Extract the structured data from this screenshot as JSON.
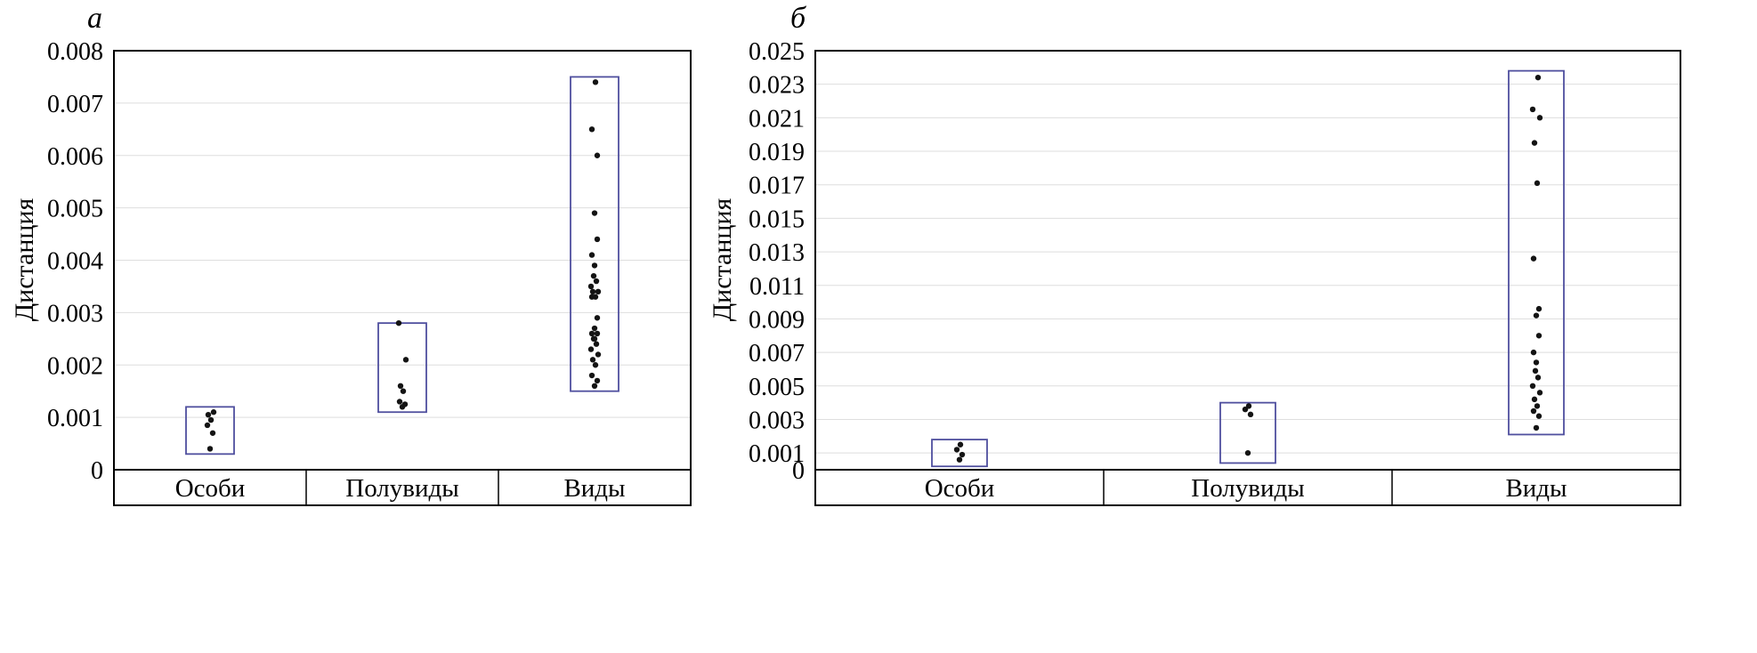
{
  "style": {
    "background": "#ffffff",
    "frame_color": "#000000",
    "grid_color": "#dedede",
    "box_color": "#4f4f9e",
    "dot_color": "#141414",
    "text_color": "#000000"
  },
  "chart_data": [
    {
      "type": "scatter",
      "panel_label": "а",
      "ylabel": "Дистанция",
      "xlabel": "",
      "grid": true,
      "legend": "none",
      "categories": [
        "Особи",
        "Полувиды",
        "Виды"
      ],
      "ylim": [
        0,
        0.008
      ],
      "yticks": [
        0,
        0.001,
        0.002,
        0.003,
        0.004,
        0.005,
        0.006,
        0.007,
        0.008
      ],
      "ytick_labels": [
        "0",
        "0.001",
        "0.002",
        "0.003",
        "0.004",
        "0.005",
        "0.006",
        "0.007",
        "0.008"
      ],
      "boxes": [
        {
          "category": "Особи",
          "min": 0.0003,
          "max": 0.0012
        },
        {
          "category": "Полувиды",
          "min": 0.0011,
          "max": 0.0028
        },
        {
          "category": "Виды",
          "min": 0.0015,
          "max": 0.0075
        }
      ],
      "series": [
        {
          "name": "Особи",
          "values": [
            0.0004,
            0.0007,
            0.00085,
            0.00095,
            0.00105,
            0.0011
          ]
        },
        {
          "name": "Полувиды",
          "values": [
            0.0012,
            0.00125,
            0.0013,
            0.0015,
            0.0016,
            0.0021,
            0.0028
          ]
        },
        {
          "name": "Виды",
          "values": [
            0.0016,
            0.0017,
            0.0018,
            0.002,
            0.0021,
            0.0022,
            0.0023,
            0.0024,
            0.0025,
            0.0025,
            0.0026,
            0.0026,
            0.0027,
            0.0029,
            0.0033,
            0.0033,
            0.0034,
            0.0034,
            0.0035,
            0.0036,
            0.0037,
            0.0039,
            0.0041,
            0.0044,
            0.0049,
            0.006,
            0.0065,
            0.0074
          ]
        }
      ]
    },
    {
      "type": "scatter",
      "panel_label": "б",
      "ylabel": "Дистанция",
      "xlabel": "",
      "grid": true,
      "legend": "none",
      "categories": [
        "Особи",
        "Полувиды",
        "Виды"
      ],
      "ylim": [
        0,
        0.025
      ],
      "yticks": [
        0,
        0.001,
        0.003,
        0.005,
        0.007,
        0.009,
        0.011,
        0.013,
        0.015,
        0.017,
        0.019,
        0.021,
        0.023,
        0.025
      ],
      "ytick_labels": [
        "0",
        "0.001",
        "0.003",
        "0.005",
        "0.007",
        "0.009",
        "0.011",
        "0.013",
        "0.015",
        "0.017",
        "0.019",
        "0.021",
        "0.023",
        "0.025"
      ],
      "boxes": [
        {
          "category": "Особи",
          "min": 0.0002,
          "max": 0.0018
        },
        {
          "category": "Полувиды",
          "min": 0.0004,
          "max": 0.004
        },
        {
          "category": "Виды",
          "min": 0.0021,
          "max": 0.0238
        }
      ],
      "series": [
        {
          "name": "Особи",
          "values": [
            0.0006,
            0.0009,
            0.0012,
            0.0015
          ]
        },
        {
          "name": "Полувиды",
          "values": [
            0.001,
            0.0033,
            0.0036,
            0.0038
          ]
        },
        {
          "name": "Виды",
          "values": [
            0.0025,
            0.0032,
            0.0035,
            0.0038,
            0.0042,
            0.0046,
            0.005,
            0.0055,
            0.0059,
            0.0064,
            0.007,
            0.008,
            0.0092,
            0.0096,
            0.0126,
            0.0171,
            0.0195,
            0.021,
            0.0215,
            0.0234
          ]
        }
      ]
    }
  ]
}
